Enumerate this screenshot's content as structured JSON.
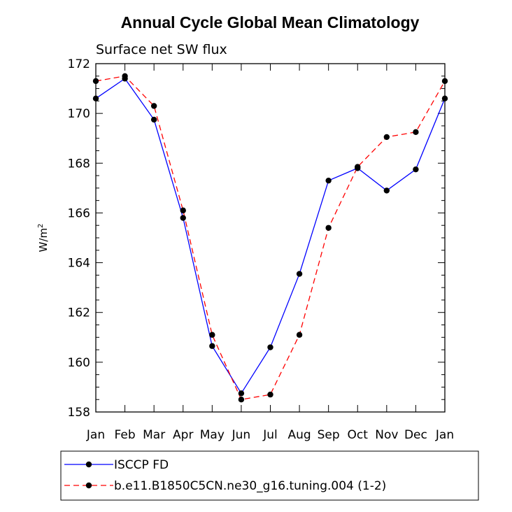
{
  "chart_data": {
    "type": "line",
    "title": "Annual Cycle Global Mean Climatology",
    "subtitle": "Surface net SW flux",
    "xlabel": "",
    "ylabel": "W/m",
    "ylabel_superscript": "2",
    "categories": [
      "Jan",
      "Feb",
      "Mar",
      "Apr",
      "May",
      "Jun",
      "Jul",
      "Aug",
      "Sep",
      "Oct",
      "Nov",
      "Dec",
      "Jan"
    ],
    "ylim": [
      158,
      172
    ],
    "yticks": [
      158,
      160,
      162,
      164,
      166,
      168,
      170,
      172
    ],
    "ytick_labels": [
      "158",
      "160",
      "162",
      "164",
      "166",
      "168",
      "170",
      "172"
    ],
    "grid": false,
    "legend_position": "bottom",
    "series": [
      {
        "name": "ISCCP FD",
        "color": "#0000ff",
        "line_style": "solid",
        "marker": "filled-circle",
        "values": [
          170.6,
          171.4,
          169.75,
          165.8,
          160.65,
          158.75,
          160.6,
          163.55,
          167.3,
          167.8,
          166.9,
          167.75,
          170.6
        ]
      },
      {
        "name": "b.e11.B1850C5CN.ne30_g16.tuning.004 (1-2)",
        "color": "#ff0000",
        "line_style": "dashed",
        "marker": "filled-circle",
        "values": [
          171.3,
          171.5,
          170.3,
          166.1,
          161.1,
          158.5,
          158.7,
          161.1,
          165.4,
          167.85,
          169.05,
          169.25,
          171.3
        ]
      }
    ]
  }
}
